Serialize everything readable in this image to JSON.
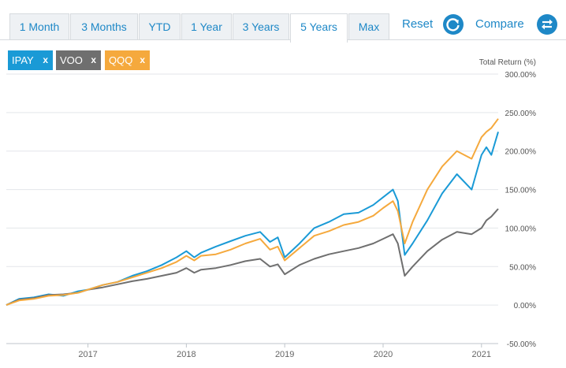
{
  "tabs": [
    {
      "label": "1 Month",
      "active": false
    },
    {
      "label": "3 Months",
      "active": false
    },
    {
      "label": "YTD",
      "active": false
    },
    {
      "label": "1 Year",
      "active": false
    },
    {
      "label": "3 Years",
      "active": false
    },
    {
      "label": "5 Years",
      "active": true
    },
    {
      "label": "Max",
      "active": false
    }
  ],
  "toolbar": {
    "reset_label": "Reset",
    "compare_label": "Compare",
    "reset_icon": "refresh-icon",
    "compare_icon": "swap-arrows-icon",
    "accent_color": "#1e88c7"
  },
  "chips": [
    {
      "symbol": "IPAY",
      "remove": "x",
      "color": "#1a9ad6"
    },
    {
      "symbol": "VOO",
      "remove": "x",
      "color": "#6f6f6f"
    },
    {
      "symbol": "QQQ",
      "remove": "x",
      "color": "#f5a93d"
    }
  ],
  "chart_data": {
    "type": "line",
    "ylabel": "Total Return (%)",
    "ylim": [
      -50,
      300
    ],
    "y_ticks": [
      300,
      250,
      200,
      150,
      100,
      50,
      0,
      -50
    ],
    "y_tick_labels": [
      "300.00%",
      "250.00%",
      "200.00%",
      "150.00%",
      "100.00%",
      "50.00%",
      "0.00%",
      "-50.00%"
    ],
    "x_range": [
      2016.17,
      2021.17
    ],
    "x_ticks": [
      2017,
      2018,
      2019,
      2020,
      2021
    ],
    "x_tick_labels": [
      "2017",
      "2018",
      "2019",
      "2020",
      "2021"
    ],
    "grid": "horizontal",
    "x": [
      2016.17,
      2016.3,
      2016.45,
      2016.6,
      2016.75,
      2016.9,
      2017.0,
      2017.15,
      2017.3,
      2017.45,
      2017.6,
      2017.75,
      2017.9,
      2018.0,
      2018.08,
      2018.15,
      2018.3,
      2018.45,
      2018.6,
      2018.75,
      2018.85,
      2018.93,
      2019.0,
      2019.15,
      2019.3,
      2019.45,
      2019.6,
      2019.75,
      2019.9,
      2020.0,
      2020.1,
      2020.15,
      2020.22,
      2020.3,
      2020.45,
      2020.6,
      2020.75,
      2020.9,
      2021.0,
      2021.05,
      2021.1,
      2021.17
    ],
    "series": [
      {
        "name": "IPAY",
        "color": "#1a9ad6",
        "values": [
          0,
          8,
          10,
          14,
          12,
          18,
          20,
          26,
          30,
          38,
          44,
          52,
          62,
          70,
          62,
          68,
          76,
          83,
          90,
          95,
          82,
          88,
          62,
          80,
          100,
          108,
          118,
          120,
          130,
          140,
          150,
          135,
          65,
          80,
          110,
          145,
          170,
          150,
          195,
          205,
          195,
          225
        ]
      },
      {
        "name": "VOO",
        "color": "#6f6f6f",
        "values": [
          0,
          7,
          9,
          13,
          14,
          16,
          20,
          23,
          27,
          31,
          34,
          38,
          42,
          48,
          42,
          46,
          48,
          52,
          57,
          60,
          50,
          53,
          40,
          52,
          60,
          66,
          70,
          74,
          80,
          86,
          92,
          80,
          38,
          50,
          70,
          85,
          95,
          92,
          100,
          110,
          115,
          125
        ]
      },
      {
        "name": "QQQ",
        "color": "#f5a93d",
        "values": [
          0,
          6,
          8,
          12,
          13,
          16,
          20,
          26,
          30,
          36,
          42,
          48,
          56,
          64,
          58,
          64,
          66,
          72,
          80,
          86,
          72,
          76,
          58,
          74,
          90,
          96,
          104,
          108,
          116,
          126,
          135,
          122,
          80,
          108,
          150,
          180,
          200,
          190,
          218,
          225,
          230,
          242
        ]
      }
    ]
  }
}
